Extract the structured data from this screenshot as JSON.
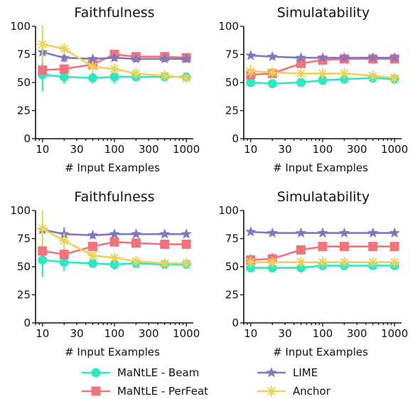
{
  "colors": {
    "MaNtLE - Beam": "#2ee8c2",
    "MaNtLE - PerFeat": "#f2737a",
    "LIME": "#7f78bf",
    "Anchor": "#ecd25a"
  },
  "markers": {
    "MaNtLE - Beam": "circle",
    "MaNtLE - PerFeat": "square",
    "LIME": "star",
    "Anchor": "x-star"
  },
  "legend": {
    "placement": "bottom",
    "entries": [
      "MaNtLE - Beam",
      "MaNtLE - PerFeat",
      "LIME",
      "Anchor"
    ]
  },
  "chart_data": [
    {
      "type": "line",
      "title": "Faithfulness",
      "xlabel": "# Input Examples",
      "ylabel": "",
      "x_scale": "log",
      "x": [
        10,
        20,
        50,
        100,
        200,
        500,
        1000
      ],
      "xticks": [
        10,
        30,
        100,
        300,
        1000
      ],
      "ylim": [
        0,
        100
      ],
      "yticks": [
        0,
        25,
        50,
        75,
        100
      ],
      "series": [
        {
          "name": "MaNtLE - Beam",
          "values": [
            57,
            55,
            54,
            55,
            55,
            55,
            55
          ],
          "err": [
            15,
            6,
            5,
            6,
            4,
            3,
            3
          ]
        },
        {
          "name": "MaNtLE - PerFeat",
          "values": [
            61,
            62,
            66,
            75,
            73,
            73,
            72
          ],
          "err": [
            4,
            4,
            3,
            4,
            3,
            3,
            3
          ]
        },
        {
          "name": "LIME",
          "values": [
            77,
            72,
            71,
            72,
            71,
            71,
            71
          ],
          "err": [
            5,
            4,
            3,
            3,
            3,
            3,
            3
          ]
        },
        {
          "name": "Anchor",
          "values": [
            84,
            80,
            64,
            62,
            58,
            56,
            54
          ],
          "err": [
            17,
            5,
            4,
            3,
            3,
            3,
            3
          ]
        }
      ]
    },
    {
      "type": "line",
      "title": "Simulatability",
      "xlabel": "# Input Examples",
      "ylabel": "",
      "x_scale": "log",
      "x": [
        10,
        20,
        50,
        100,
        200,
        500,
        1000
      ],
      "xticks": [
        10,
        30,
        100,
        300,
        1000
      ],
      "ylim": [
        0,
        100
      ],
      "yticks": [
        0,
        25,
        50,
        75,
        100
      ],
      "series": [
        {
          "name": "MaNtLE - Beam",
          "values": [
            50,
            49,
            50,
            52,
            53,
            54,
            53
          ],
          "err": [
            4,
            3,
            3,
            4,
            3,
            3,
            3
          ]
        },
        {
          "name": "MaNtLE - PerFeat",
          "values": [
            57,
            58,
            67,
            70,
            71,
            71,
            71
          ],
          "err": [
            4,
            4,
            3,
            3,
            3,
            3,
            3
          ]
        },
        {
          "name": "LIME",
          "values": [
            74,
            73,
            72,
            72,
            72,
            72,
            72
          ],
          "err": [
            2,
            2,
            2,
            2,
            2,
            2,
            2
          ]
        },
        {
          "name": "Anchor",
          "values": [
            60,
            59,
            58,
            58,
            58,
            56,
            54
          ],
          "err": [
            6,
            4,
            3,
            3,
            3,
            3,
            3
          ]
        }
      ]
    },
    {
      "type": "line",
      "title": "Faithfulness",
      "xlabel": "# Input Examples",
      "ylabel": "",
      "x_scale": "log",
      "x": [
        10,
        20,
        50,
        100,
        200,
        500,
        1000
      ],
      "xticks": [
        10,
        30,
        100,
        300,
        1000
      ],
      "ylim": [
        0,
        100
      ],
      "yticks": [
        0,
        25,
        50,
        75,
        100
      ],
      "series": [
        {
          "name": "MaNtLE - Beam",
          "values": [
            56,
            54,
            53,
            52,
            53,
            52,
            52
          ],
          "err": [
            15,
            8,
            4,
            5,
            4,
            3,
            3
          ]
        },
        {
          "name": "MaNtLE - PerFeat",
          "values": [
            64,
            61,
            68,
            72,
            71,
            70,
            70
          ],
          "err": [
            5,
            5,
            4,
            4,
            3,
            3,
            3
          ]
        },
        {
          "name": "LIME",
          "values": [
            83,
            79,
            78,
            79,
            79,
            79,
            79
          ],
          "err": [
            5,
            6,
            3,
            2,
            2,
            2,
            2
          ]
        },
        {
          "name": "Anchor",
          "values": [
            84,
            73,
            60,
            58,
            55,
            53,
            53
          ],
          "err": [
            16,
            7,
            3,
            3,
            3,
            3,
            3
          ]
        }
      ]
    },
    {
      "type": "line",
      "title": "Simulatability",
      "xlabel": "# Input Examples",
      "ylabel": "",
      "x_scale": "log",
      "x": [
        10,
        20,
        50,
        100,
        200,
        500,
        1000
      ],
      "xticks": [
        10,
        30,
        100,
        300,
        1000
      ],
      "ylim": [
        0,
        100
      ],
      "yticks": [
        0,
        25,
        50,
        75,
        100
      ],
      "series": [
        {
          "name": "MaNtLE - Beam",
          "values": [
            49,
            49,
            49,
            51,
            51,
            51,
            51
          ],
          "err": [
            3,
            3,
            3,
            3,
            3,
            3,
            3
          ]
        },
        {
          "name": "MaNtLE - PerFeat",
          "values": [
            56,
            57,
            65,
            68,
            68,
            68,
            68
          ],
          "err": [
            5,
            5,
            4,
            3,
            3,
            3,
            3
          ]
        },
        {
          "name": "LIME",
          "values": [
            81,
            80,
            80,
            80,
            80,
            80,
            80
          ],
          "err": [
            2,
            2,
            2,
            2,
            2,
            2,
            2
          ]
        },
        {
          "name": "Anchor",
          "values": [
            54,
            54,
            54,
            54,
            54,
            54,
            54
          ],
          "err": [
            4,
            3,
            3,
            3,
            3,
            3,
            3
          ]
        }
      ]
    }
  ]
}
